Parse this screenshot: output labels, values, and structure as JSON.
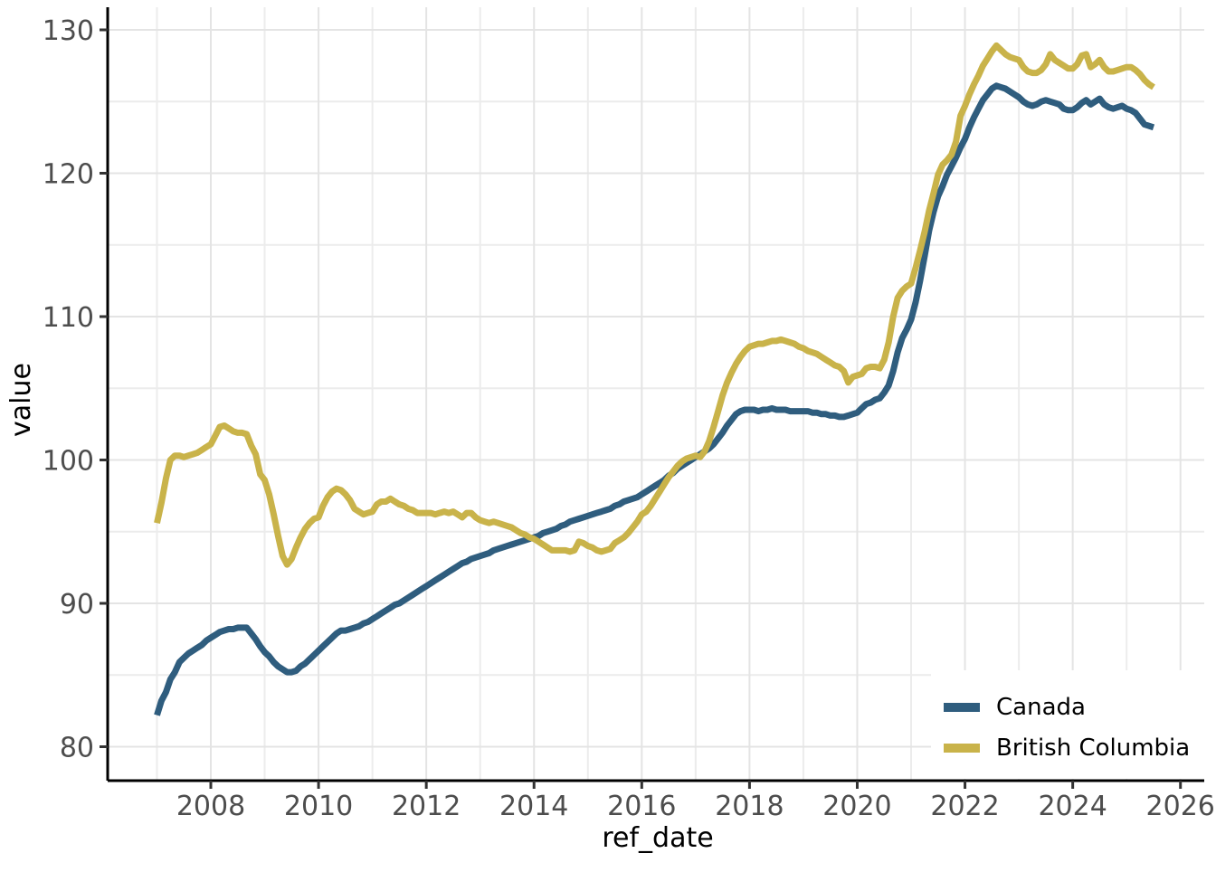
{
  "chart_data": {
    "type": "line",
    "title": "",
    "xlabel": "ref_date",
    "ylabel": "value",
    "x_unit": "monthly dates",
    "start_year": 2007,
    "start_month": 1,
    "x_ticks": [
      2008,
      2010,
      2012,
      2014,
      2016,
      2018,
      2020,
      2022,
      2024,
      2026
    ],
    "x_minor_ticks": [
      2007,
      2009,
      2011,
      2013,
      2015,
      2017,
      2019,
      2021,
      2023,
      2025
    ],
    "y_ticks": [
      80,
      90,
      100,
      110,
      120,
      130
    ],
    "y_minor_ticks": [
      85,
      95,
      105,
      115,
      125
    ],
    "xlim_years": [
      2006.08,
      2026.44
    ],
    "ylim": [
      77.55,
      131.5
    ],
    "grid": "major and minor, light gray on white",
    "legend_position": "inside bottom-right",
    "series": [
      {
        "name": "Canada",
        "color": "#2F5D7E",
        "values": [
          82.2,
          83.2,
          83.8,
          84.7,
          85.2,
          85.9,
          86.2,
          86.5,
          86.7,
          86.9,
          87.1,
          87.4,
          87.6,
          87.8,
          88.0,
          88.1,
          88.2,
          88.2,
          88.3,
          88.3,
          88.3,
          87.9,
          87.5,
          87.0,
          86.6,
          86.3,
          85.9,
          85.6,
          85.4,
          85.2,
          85.2,
          85.3,
          85.6,
          85.8,
          86.1,
          86.4,
          86.7,
          87.0,
          87.3,
          87.6,
          87.9,
          88.1,
          88.1,
          88.2,
          88.3,
          88.4,
          88.6,
          88.7,
          88.9,
          89.1,
          89.3,
          89.5,
          89.7,
          89.9,
          90.0,
          90.2,
          90.4,
          90.6,
          90.8,
          91.0,
          91.2,
          91.4,
          91.6,
          91.8,
          92.0,
          92.2,
          92.4,
          92.6,
          92.8,
          92.9,
          93.1,
          93.2,
          93.3,
          93.4,
          93.5,
          93.7,
          93.8,
          93.9,
          94.0,
          94.1,
          94.2,
          94.3,
          94.4,
          94.5,
          94.6,
          94.7,
          94.9,
          95.0,
          95.1,
          95.2,
          95.4,
          95.5,
          95.7,
          95.8,
          95.9,
          96.0,
          96.1,
          96.2,
          96.3,
          96.4,
          96.5,
          96.6,
          96.8,
          96.9,
          97.1,
          97.2,
          97.3,
          97.4,
          97.6,
          97.8,
          98.0,
          98.2,
          98.4,
          98.6,
          98.9,
          99.1,
          99.4,
          99.6,
          99.8,
          100.0,
          100.2,
          100.4,
          100.6,
          100.8,
          101.1,
          101.5,
          101.9,
          102.4,
          102.8,
          103.2,
          103.4,
          103.5,
          103.5,
          103.5,
          103.4,
          103.5,
          103.5,
          103.6,
          103.5,
          103.5,
          103.5,
          103.4,
          103.4,
          103.4,
          103.4,
          103.4,
          103.3,
          103.3,
          103.2,
          103.2,
          103.1,
          103.1,
          103.0,
          103.0,
          103.1,
          103.2,
          103.3,
          103.6,
          103.9,
          104.0,
          104.2,
          104.3,
          104.7,
          105.2,
          106.2,
          107.5,
          108.5,
          109.1,
          109.8,
          111.0,
          112.5,
          114.2,
          116.0,
          117.3,
          118.4,
          119.1,
          119.9,
          120.5,
          121.1,
          121.8,
          122.4,
          123.2,
          123.9,
          124.5,
          125.1,
          125.5,
          125.9,
          126.1,
          126.0,
          125.9,
          125.7,
          125.5,
          125.3,
          125.0,
          124.8,
          124.7,
          124.8,
          125.0,
          125.1,
          125.0,
          124.9,
          124.8,
          124.5,
          124.4,
          124.4,
          124.6,
          124.9,
          125.1,
          124.8,
          125.0,
          125.2,
          124.8,
          124.6,
          124.5,
          124.6,
          124.7,
          124.5,
          124.4,
          124.2,
          123.8,
          123.4,
          123.3,
          123.2
        ]
      },
      {
        "name": "British Columbia",
        "color": "#C9B34A",
        "values": [
          95.6,
          97.0,
          98.7,
          100.0,
          100.3,
          100.3,
          100.2,
          100.3,
          100.4,
          100.5,
          100.7,
          100.9,
          101.1,
          101.7,
          102.3,
          102.4,
          102.2,
          102.0,
          101.9,
          101.9,
          101.8,
          101.0,
          100.4,
          99.0,
          98.6,
          97.6,
          96.2,
          94.7,
          93.3,
          92.7,
          93.1,
          93.9,
          94.6,
          95.2,
          95.6,
          95.9,
          96.0,
          96.8,
          97.4,
          97.8,
          98.0,
          97.9,
          97.6,
          97.2,
          96.6,
          96.4,
          96.2,
          96.3,
          96.4,
          96.9,
          97.1,
          97.1,
          97.3,
          97.1,
          96.9,
          96.8,
          96.6,
          96.5,
          96.3,
          96.3,
          96.3,
          96.3,
          96.2,
          96.3,
          96.4,
          96.3,
          96.4,
          96.2,
          96.0,
          96.3,
          96.3,
          96.0,
          95.8,
          95.7,
          95.6,
          95.7,
          95.6,
          95.5,
          95.4,
          95.3,
          95.1,
          94.9,
          94.8,
          94.6,
          94.5,
          94.3,
          94.1,
          93.9,
          93.7,
          93.7,
          93.7,
          93.7,
          93.6,
          93.7,
          94.3,
          94.2,
          94.0,
          93.9,
          93.7,
          93.6,
          93.7,
          93.8,
          94.2,
          94.4,
          94.6,
          94.9,
          95.3,
          95.7,
          96.2,
          96.4,
          96.8,
          97.3,
          97.8,
          98.3,
          98.8,
          99.2,
          99.6,
          99.9,
          100.1,
          100.2,
          100.3,
          100.2,
          100.6,
          101.3,
          102.3,
          103.4,
          104.5,
          105.4,
          106.1,
          106.7,
          107.2,
          107.6,
          107.9,
          108.0,
          108.1,
          108.1,
          108.2,
          108.3,
          108.3,
          108.4,
          108.3,
          108.2,
          108.1,
          107.9,
          107.8,
          107.6,
          107.5,
          107.4,
          107.2,
          107.0,
          106.8,
          106.6,
          106.5,
          106.2,
          105.4,
          105.8,
          105.9,
          106.0,
          106.4,
          106.5,
          106.5,
          106.4,
          107.0,
          108.2,
          110.0,
          111.3,
          111.8,
          112.1,
          112.3,
          113.4,
          114.6,
          115.9,
          117.4,
          118.6,
          119.9,
          120.6,
          120.9,
          121.3,
          122.2,
          124.0,
          124.7,
          125.5,
          126.2,
          126.8,
          127.5,
          128.0,
          128.5,
          128.9,
          128.6,
          128.3,
          128.1,
          128.0,
          127.9,
          127.4,
          127.1,
          127.0,
          127.0,
          127.2,
          127.6,
          128.3,
          127.9,
          127.7,
          127.5,
          127.3,
          127.3,
          127.6,
          128.2,
          128.3,
          127.4,
          127.6,
          127.9,
          127.4,
          127.1,
          127.1,
          127.2,
          127.3,
          127.4,
          127.4,
          127.2,
          126.9,
          126.5,
          126.2,
          126.0
        ]
      }
    ]
  },
  "style": {
    "axis_line_color": "#000000",
    "tick_color": "#333333",
    "tick_label_color": "#4D4D4D",
    "axis_title_color": "#000000",
    "grid_major_color": "#E4E4E4",
    "grid_minor_color": "#ECECEC",
    "background": "#FFFFFF",
    "legend_background": "#FFFFFF"
  }
}
